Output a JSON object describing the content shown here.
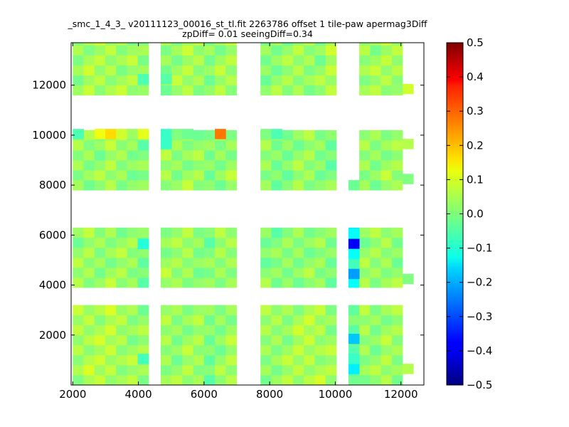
{
  "chart_data": {
    "type": "heatmap",
    "title_line1": "_smc_1_4_3_ v20111123_00016_st_tl.fit 2263786 offset 1 tile-paw apermag3Diff",
    "title_line2": "zpDiff= 0.01 seeingDiff=0.34",
    "xlabel": "",
    "ylabel": "",
    "xlim": [
      1950,
      12700
    ],
    "ylim": [
      0,
      13700
    ],
    "x_ticks": [
      2000,
      4000,
      6000,
      8000,
      10000,
      12000
    ],
    "y_ticks": [
      2000,
      4000,
      6000,
      8000,
      10000,
      12000
    ],
    "x_tick_labels": [
      "2000",
      "4000",
      "6000",
      "8000",
      "10000",
      "12000"
    ],
    "y_tick_labels": [
      "2000",
      "4000",
      "6000",
      "8000",
      "10000",
      "12000"
    ],
    "colorbar": {
      "range": [
        -0.5,
        0.5
      ],
      "ticks": [
        0.5,
        0.4,
        0.3,
        0.2,
        0.1,
        0.0,
        -0.1,
        -0.2,
        -0.3,
        -0.4,
        -0.5
      ],
      "tick_labels": [
        "0.5",
        "0.4",
        "0.3",
        "0.2",
        "0.1",
        "0.0",
        "−0.1",
        "−0.2",
        "−0.3",
        "−0.4",
        "−0.5"
      ],
      "colormap": "jet"
    },
    "cell_size": [
      330,
      400
    ],
    "x_columns": [
      2000,
      2330,
      2660,
      2990,
      3320,
      3650,
      3980,
      4680,
      5010,
      5340,
      5670,
      6000,
      6330,
      6660,
      7720,
      8050,
      8380,
      8710,
      9040,
      9370,
      9700,
      10400,
      10730,
      11060,
      11390,
      11720,
      12050,
      12380
    ],
    "y_bands": [
      {
        "y0": 0,
        "rows": 8,
        "base": [
          0.04,
          0.05,
          0.045,
          0.05,
          0.04,
          0.03,
          0.02,
          0.03,
          0.02,
          0.03,
          0.025,
          0.0,
          0.02,
          0.03,
          0.02,
          0.03,
          0.03,
          0.04,
          0.05,
          0.045,
          0.03,
          -0.03,
          0.03,
          0.02,
          0.03,
          0.02,
          null,
          null
        ]
      },
      {
        "y0": 3900,
        "rows": 6,
        "base": [
          0.02,
          0.025,
          0.02,
          0.03,
          0.025,
          0.02,
          0.0,
          0.03,
          0.02,
          0.03,
          0.02,
          0.0,
          0.02,
          0.03,
          0.01,
          0.0,
          0.01,
          0.02,
          0.02,
          0.01,
          0.0,
          -0.12,
          0.02,
          0.02,
          0.03,
          0.02,
          null,
          null
        ]
      },
      {
        "y0": 7800,
        "rows": 6,
        "base": [
          0.02,
          0.025,
          0.02,
          0.03,
          0.025,
          0.02,
          0.0,
          0.03,
          0.02,
          0.03,
          0.02,
          0.0,
          0.02,
          0.03,
          0.01,
          0.0,
          0.01,
          0.02,
          0.02,
          0.01,
          0.0,
          null,
          0.02,
          0.02,
          0.03,
          0.02,
          null,
          null
        ]
      },
      {
        "y0": 11600,
        "rows": 6,
        "base": [
          0.03,
          0.04,
          0.035,
          0.04,
          0.035,
          0.03,
          0.01,
          0.02,
          0.03,
          0.035,
          0.03,
          0.02,
          0.03,
          0.03,
          0.01,
          0.02,
          0.02,
          0.03,
          0.03,
          0.02,
          0.04,
          null,
          0.04,
          0.03,
          0.035,
          0.04,
          null,
          null
        ]
      }
    ],
    "notable_cells": [
      {
        "col": 0,
        "y": 9850,
        "v": -0.05
      },
      {
        "col": 1,
        "y": 9850,
        "v": null
      },
      {
        "col": 2,
        "y": 9850,
        "v": 0.11
      },
      {
        "col": 3,
        "y": 9850,
        "v": 0.16
      },
      {
        "col": 4,
        "y": 9850,
        "v": 0.08
      },
      {
        "col": 5,
        "y": 9850,
        "v": 0.03
      },
      {
        "col": 6,
        "y": 9850,
        "v": 0.1
      },
      {
        "col": 7,
        "y": 9850,
        "v": -0.07
      },
      {
        "col": 8,
        "y": 9850,
        "v": 0.0
      },
      {
        "col": 9,
        "y": 9850,
        "v": -0.02
      },
      {
        "col": 12,
        "y": 9850,
        "v": 0.26
      },
      {
        "col": 14,
        "y": 9850,
        "v": 0.0
      },
      {
        "col": 15,
        "y": 9850,
        "v": -0.05
      },
      {
        "col": 7,
        "y": 9450,
        "v": -0.07
      },
      {
        "col": 21,
        "y": 7800,
        "v": -0.02
      },
      {
        "col": 21,
        "y": 5850,
        "v": -0.12
      },
      {
        "col": 21,
        "y": 5450,
        "v": -0.38
      },
      {
        "col": 21,
        "y": 5050,
        "v": -0.12
      },
      {
        "col": 21,
        "y": 4650,
        "v": -0.06
      },
      {
        "col": 21,
        "y": 4250,
        "v": -0.22
      },
      {
        "col": 6,
        "y": 5450,
        "v": -0.09
      },
      {
        "col": 21,
        "y": 1650,
        "v": -0.18
      },
      {
        "col": 21,
        "y": 450,
        "v": -0.14
      },
      {
        "col": 21,
        "y": 850,
        "v": -0.07
      },
      {
        "col": 6,
        "y": 850,
        "v": -0.06
      },
      {
        "col": 6,
        "y": 12050,
        "v": -0.05
      },
      {
        "col": 7,
        "y": 12050,
        "v": -0.04
      },
      {
        "col": 26,
        "y": 11650,
        "v": 0.08
      },
      {
        "col": 26,
        "y": 9450,
        "v": 0.05
      },
      {
        "col": 26,
        "y": 8050,
        "v": 0.0
      },
      {
        "col": 26,
        "y": 4050,
        "v": 0.0
      },
      {
        "col": 26,
        "y": 450,
        "v": 0.05
      },
      {
        "col": 25,
        "y": 11650,
        "v": 0.02
      }
    ]
  }
}
